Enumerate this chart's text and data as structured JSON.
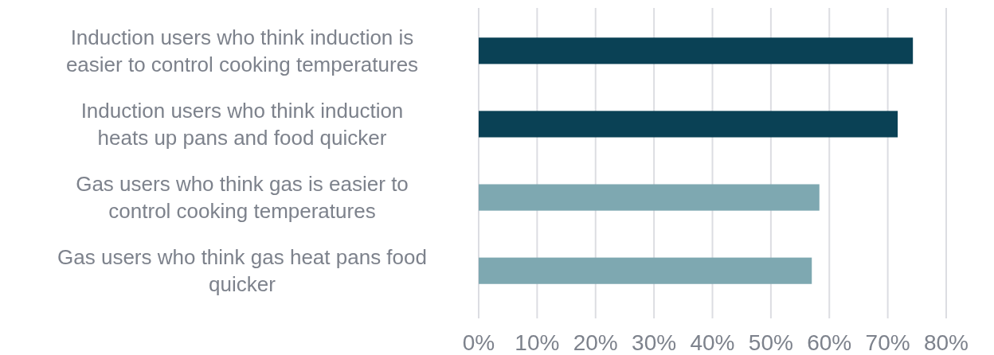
{
  "chart_data": {
    "type": "bar",
    "orientation": "horizontal",
    "categories": [
      "Induction users who think induction is easier to control cooking temperatures",
      "Induction users who think induction heats up pans and food quicker",
      "Gas users who think gas is easier to control cooking temperatures",
      "Gas users who think gas heat pans food quicker"
    ],
    "values": [
      74.3,
      71.7,
      58.3,
      57.0
    ],
    "colors": [
      "#0a4155",
      "#0a4155",
      "#7ea8b1",
      "#7ea8b1"
    ],
    "xlim": [
      0,
      80
    ],
    "xticks": [
      {
        "value": 0,
        "label": "0%"
      },
      {
        "value": 10,
        "label": "10%"
      },
      {
        "value": 20,
        "label": "20%"
      },
      {
        "value": 30,
        "label": "30%"
      },
      {
        "value": 40,
        "label": "40%"
      },
      {
        "value": 50,
        "label": "50%"
      },
      {
        "value": 60,
        "label": "60%"
      },
      {
        "value": 70,
        "label": "70%"
      },
      {
        "value": 80,
        "label": "80%"
      }
    ],
    "grid": "x"
  }
}
